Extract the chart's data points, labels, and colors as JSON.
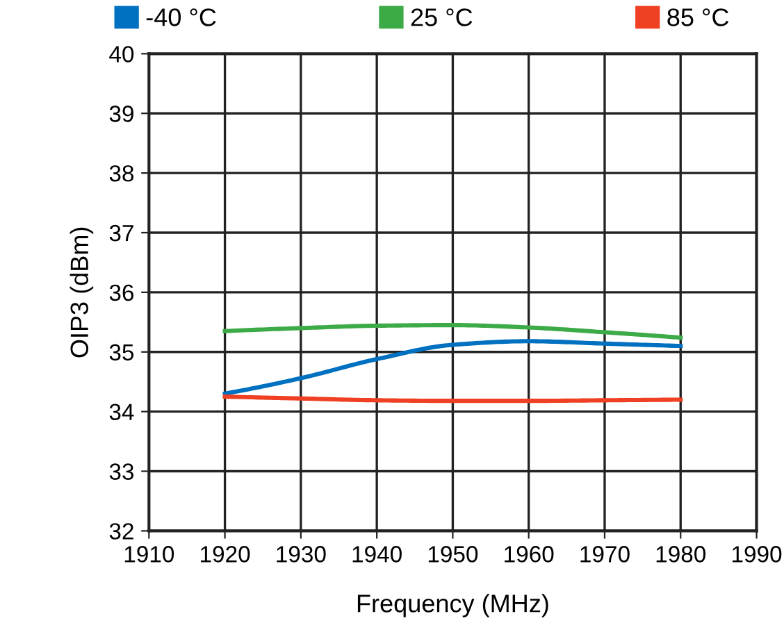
{
  "chart_data": {
    "type": "line",
    "xlabel": "Frequency (MHz)",
    "ylabel": "OIP3 (dBm)",
    "x": [
      1920,
      1930,
      1940,
      1950,
      1960,
      1970,
      1980
    ],
    "series": [
      {
        "name": "-40 °C",
        "color": "#0070c0",
        "values": [
          34.3,
          34.56,
          34.88,
          35.12,
          35.18,
          35.14,
          35.1
        ]
      },
      {
        "name": "25 °C",
        "color": "#3daa48",
        "values": [
          35.35,
          35.4,
          35.44,
          35.45,
          35.41,
          35.33,
          35.24
        ]
      },
      {
        "name": "85 °C",
        "color": "#f04023",
        "values": [
          34.25,
          34.22,
          34.19,
          34.18,
          34.18,
          34.19,
          34.2
        ]
      }
    ],
    "xlim": [
      1910,
      1990
    ],
    "xticks": [
      1910,
      1920,
      1930,
      1940,
      1950,
      1960,
      1970,
      1980,
      1990
    ],
    "ylim": [
      32,
      40
    ],
    "yticks": [
      32,
      33,
      34,
      35,
      36,
      37,
      38,
      39,
      40
    ],
    "grid": true,
    "legend": "top",
    "marker": "none",
    "line_style": "solid"
  }
}
